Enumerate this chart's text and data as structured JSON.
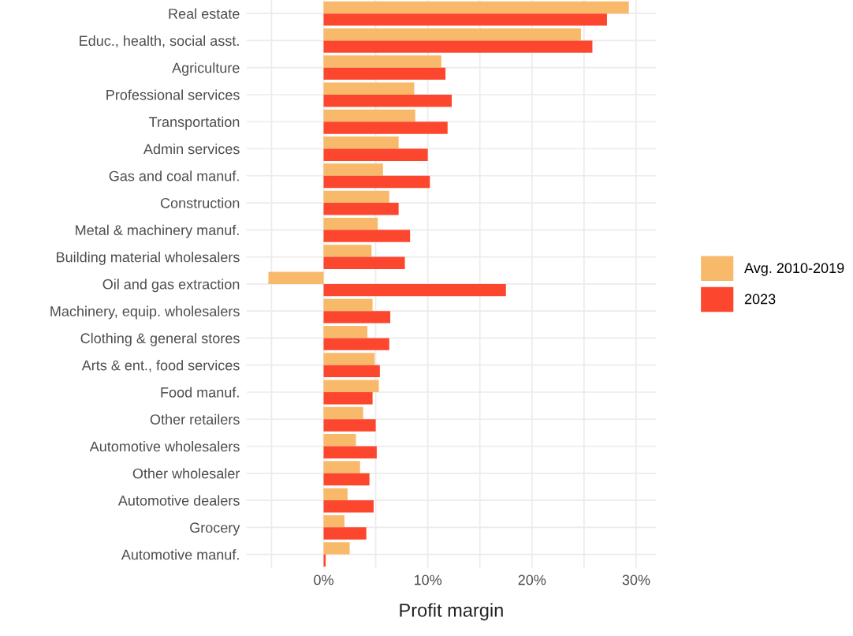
{
  "chart_data": {
    "type": "bar",
    "orientation": "horizontal",
    "xlabel": "Profit margin",
    "categories": [
      "Real estate",
      "Educ., health, social asst.",
      "Agriculture",
      "Professional services",
      "Transportation",
      "Admin services",
      "Gas and coal manuf.",
      "Construction",
      "Metal & machinery manuf.",
      "Building material wholesalers",
      "Oil and gas extraction",
      "Machinery, equip. wholesalers",
      "Clothing & general stores",
      "Arts & ent., food services",
      "Food manuf.",
      "Other retailers",
      "Automotive wholesalers",
      "Other wholesaler",
      "Automotive dealers",
      "Grocery",
      "Automotive manuf."
    ],
    "series": [
      {
        "name": "Avg. 2010-2019",
        "color": "#f9b96b",
        "values": [
          29.3,
          24.7,
          11.3,
          8.7,
          8.8,
          7.2,
          5.7,
          6.3,
          5.2,
          4.6,
          -5.3,
          4.7,
          4.2,
          4.9,
          5.3,
          3.8,
          3.1,
          3.5,
          2.3,
          2.0,
          2.5
        ]
      },
      {
        "name": "2023",
        "color": "#fc472e",
        "values": [
          27.2,
          25.8,
          11.7,
          12.3,
          11.9,
          10.0,
          10.2,
          7.2,
          8.3,
          7.8,
          17.5,
          6.4,
          6.3,
          5.4,
          4.7,
          5.0,
          5.1,
          4.4,
          4.8,
          4.1,
          0.2
        ]
      }
    ],
    "xlim": [
      -7.4,
      31.9
    ],
    "xticks": [
      {
        "value": -5,
        "label": null
      },
      {
        "value": 0,
        "label": "0%"
      },
      {
        "value": 5,
        "label": null
      },
      {
        "value": 10,
        "label": "10%"
      },
      {
        "value": 15,
        "label": null
      },
      {
        "value": 20,
        "label": "20%"
      },
      {
        "value": 25,
        "label": null
      },
      {
        "value": 30,
        "label": "30%"
      }
    ],
    "grid": true,
    "legend": "right"
  }
}
